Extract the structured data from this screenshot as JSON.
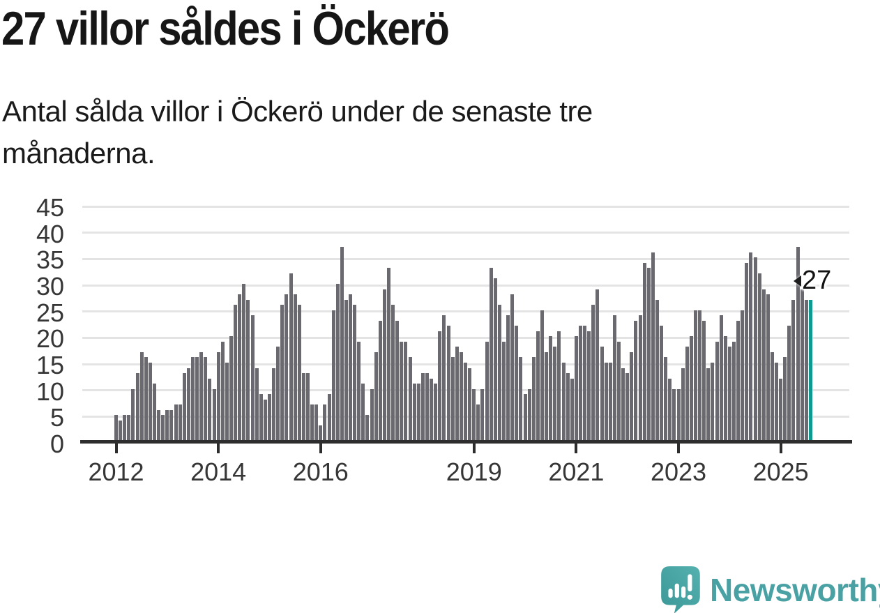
{
  "header": {
    "title": "27 villor såldes i Öckerö",
    "subtitle": "Antal sålda villor i Öckerö under de senaste tre månaderna."
  },
  "chart_data": {
    "type": "bar",
    "title": "27 villor såldes i Öckerö",
    "subtitle": "Antal sålda villor i Öckerö under de senaste tre månaderna.",
    "start_period": "2012-01",
    "frequency": "monthly",
    "ylabel": "",
    "xlabel": "",
    "ylim": [
      0,
      45
    ],
    "grid": "horizontal",
    "y_ticks": [
      0,
      5,
      10,
      15,
      20,
      25,
      30,
      35,
      40,
      45
    ],
    "x_ticks": [
      {
        "label": "2012",
        "month_index": 0
      },
      {
        "label": "2014",
        "month_index": 24
      },
      {
        "label": "2016",
        "month_index": 48
      },
      {
        "label": "2019",
        "month_index": 84
      },
      {
        "label": "2021",
        "month_index": 108
      },
      {
        "label": "2023",
        "month_index": 132
      },
      {
        "label": "2025",
        "month_index": 156
      }
    ],
    "values": [
      5,
      4,
      5,
      5,
      10,
      13,
      17,
      16,
      15,
      11,
      6,
      5,
      6,
      6,
      7,
      7,
      13,
      14,
      16,
      16,
      17,
      16,
      12,
      10,
      17,
      19,
      15,
      20,
      26,
      28,
      30,
      27,
      24,
      14,
      9,
      8,
      9,
      14,
      18,
      26,
      28,
      32,
      28,
      26,
      13,
      13,
      7,
      7,
      3,
      7,
      9,
      25,
      30,
      37,
      27,
      28,
      26,
      19,
      11,
      5,
      10,
      17,
      23,
      29,
      33,
      26,
      23,
      19,
      19,
      16,
      11,
      11,
      13,
      13,
      12,
      11,
      21,
      24,
      22,
      16,
      18,
      17,
      15,
      14,
      10,
      7,
      10,
      19,
      33,
      31,
      26,
      19,
      24,
      28,
      22,
      16,
      9,
      10,
      16,
      21,
      25,
      17,
      20,
      18,
      21,
      15,
      13,
      12,
      20,
      22,
      22,
      21,
      26,
      29,
      18,
      15,
      15,
      24,
      19,
      14,
      13,
      17,
      23,
      24,
      34,
      33,
      36,
      27,
      22,
      16,
      12,
      10,
      10,
      14,
      18,
      20,
      25,
      25,
      23,
      14,
      15,
      19,
      24,
      20,
      18,
      19,
      23,
      25,
      34,
      36,
      35,
      32,
      29,
      28,
      17,
      15,
      12,
      16,
      22,
      27,
      37,
      29,
      27,
      27
    ],
    "bar_color": "#69696F",
    "highlight_color": "#0E9A8F",
    "highlight_index": 163,
    "annotation": {
      "text": "27",
      "target": "latest-bar",
      "latest_value": 27
    }
  },
  "footer": {
    "brand": "Newsworthy",
    "brand_color": "#4AA1A4"
  }
}
